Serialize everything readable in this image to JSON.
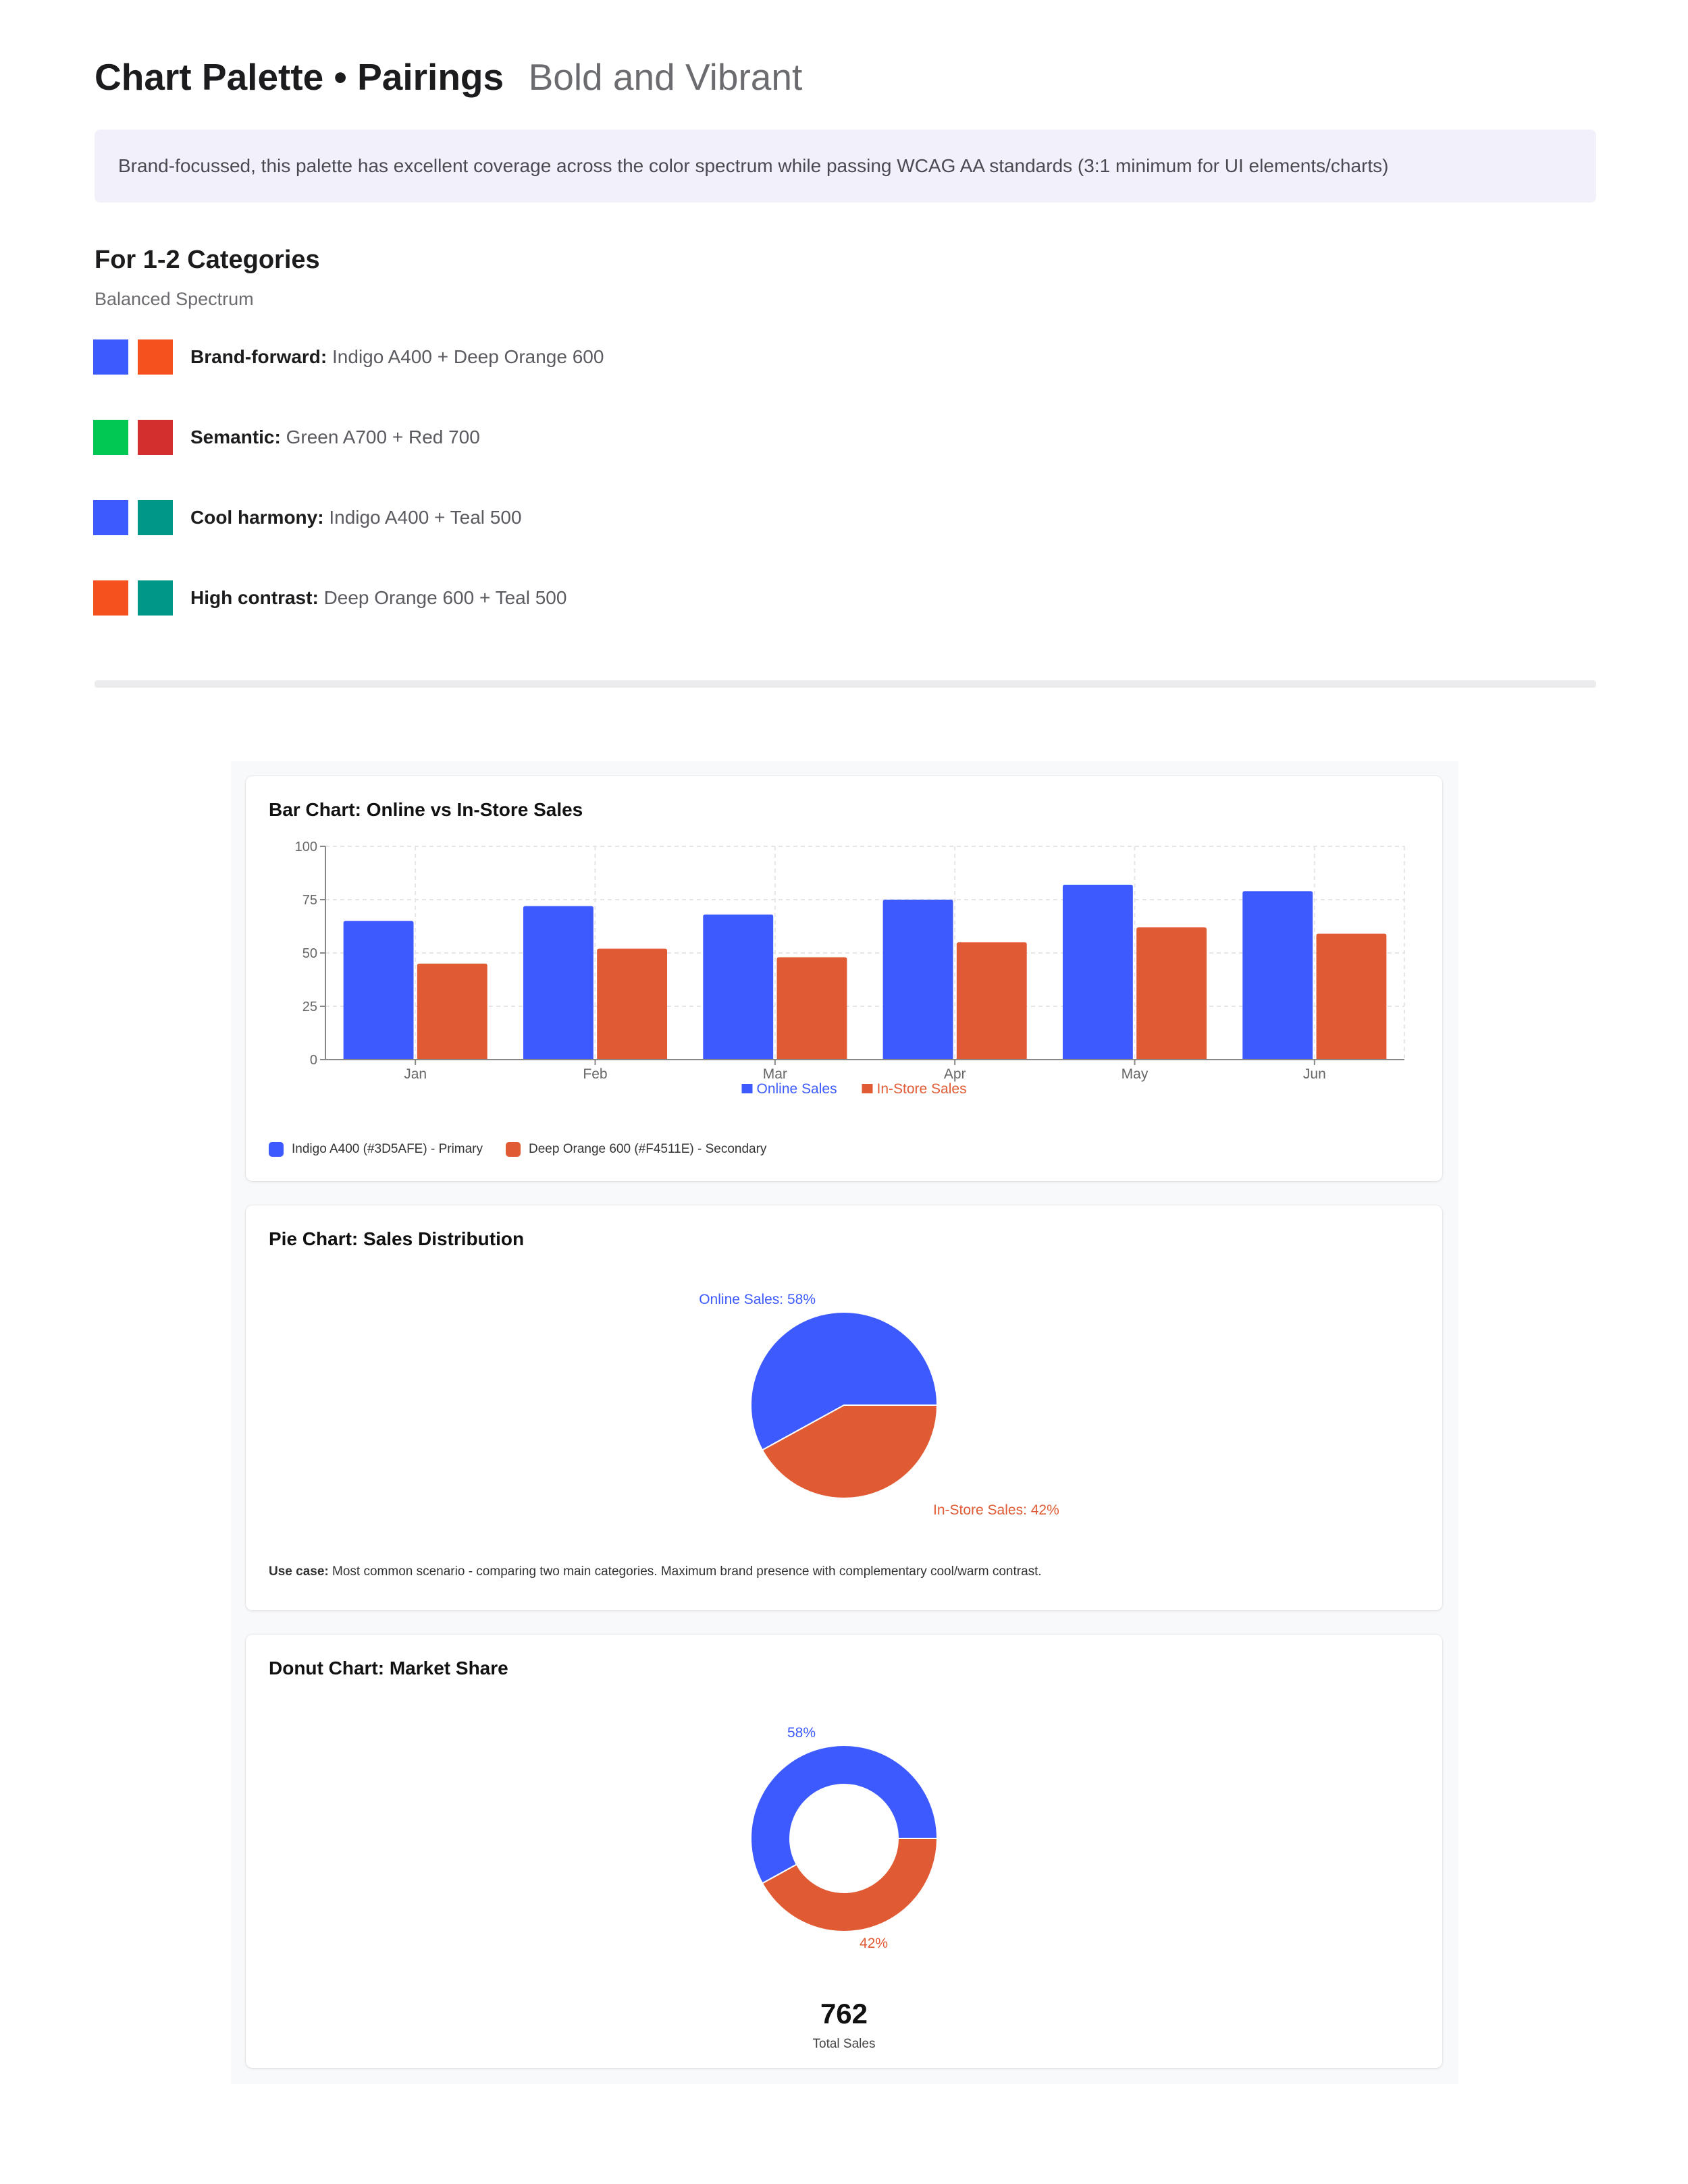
{
  "header": {
    "title": "Chart Palette • Pairings",
    "subtitle": "Bold and Vibrant"
  },
  "description": "Brand-focussed, this palette has excellent coverage across the color spectrum while passing WCAG AA standards (3:1 minimum for UI elements/charts)",
  "section": {
    "title": "For 1-2 Categories",
    "subtitle": "Balanced Spectrum",
    "pairings": [
      {
        "label": "Brand-forward:",
        "text": "Indigo A400 + Deep Orange 600",
        "colors": [
          "#3D5AFE",
          "#F4511E"
        ]
      },
      {
        "label": "Semantic:",
        "text": "Green A700 + Red 700",
        "colors": [
          "#00C853",
          "#D32F2F"
        ]
      },
      {
        "label": "Cool harmony:",
        "text": "Indigo A400 + Teal 500",
        "colors": [
          "#3D5AFE",
          "#009688"
        ]
      },
      {
        "label": "High contrast:",
        "text": "Deep Orange 600 + Teal 500",
        "colors": [
          "#F4511E",
          "#009688"
        ]
      }
    ]
  },
  "colors": {
    "primary": "#3D5AFE",
    "secondary": "#E05A33",
    "grid": "#e6e6ea",
    "axis": "#888888"
  },
  "cards": {
    "bar": {
      "title": "Bar Chart: Online vs In-Store Sales",
      "legend_items": [
        "Indigo A400 (#3D5AFE) - Primary",
        "Deep Orange 600 (#F4511E) - Secondary"
      ]
    },
    "pie": {
      "title": "Pie Chart: Sales Distribution",
      "use_case_label": "Use case:",
      "use_case_text": "Most common scenario - comparing two main categories. Maximum brand presence with complementary cool/warm contrast."
    },
    "donut": {
      "title": "Donut Chart: Market Share",
      "total_value": "762",
      "total_label": "Total Sales"
    }
  },
  "chart_data": [
    {
      "type": "bar",
      "title": "Bar Chart: Online vs In-Store Sales",
      "categories": [
        "Jan",
        "Feb",
        "Mar",
        "Apr",
        "May",
        "Jun"
      ],
      "series": [
        {
          "name": "Online Sales",
          "values": [
            65,
            72,
            68,
            75,
            82,
            79
          ]
        },
        {
          "name": "In-Store Sales",
          "values": [
            45,
            52,
            48,
            55,
            62,
            59
          ]
        }
      ],
      "ylim": [
        0,
        100
      ],
      "yticks": [
        0,
        25,
        50,
        75,
        100
      ],
      "grid": true,
      "legend": "bottom-center"
    },
    {
      "type": "pie",
      "title": "Pie Chart: Sales Distribution",
      "labels": [
        "Online Sales",
        "In-Store Sales"
      ],
      "values": [
        58,
        42
      ],
      "data_labels": [
        "Online Sales: 58%",
        "In-Store Sales: 42%"
      ]
    },
    {
      "type": "pie",
      "variant": "donut",
      "title": "Donut Chart: Market Share",
      "labels": [
        "Online Sales",
        "In-Store Sales"
      ],
      "values": [
        58,
        42
      ],
      "data_labels": [
        "58%",
        "42%"
      ]
    }
  ]
}
